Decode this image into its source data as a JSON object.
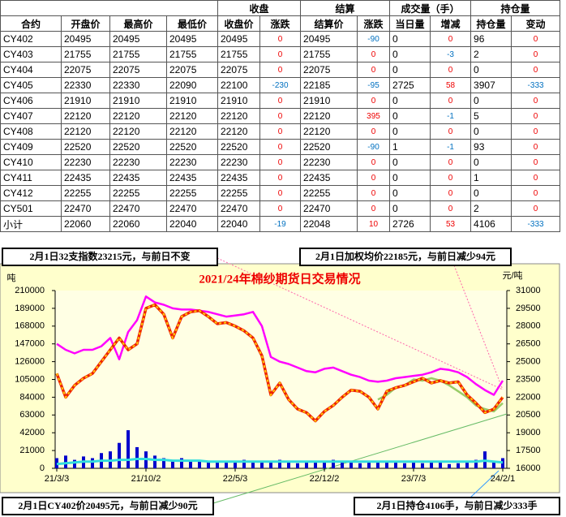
{
  "table": {
    "header_groups": [
      "收盘",
      "结算",
      "成交量（手）",
      "持仓量"
    ],
    "columns": [
      "合约",
      "开盘价",
      "最高价",
      "最低价",
      "收盘价",
      "涨跌",
      "结算价",
      "涨跌",
      "当日量",
      "增减",
      "持仓量",
      "变动"
    ],
    "rows": [
      [
        "CY402",
        20495,
        20495,
        20495,
        20495,
        0,
        20495,
        -90,
        0,
        0,
        96,
        0
      ],
      [
        "CY403",
        21755,
        21755,
        21755,
        21755,
        0,
        21755,
        0,
        0,
        -3,
        2,
        0
      ],
      [
        "CY404",
        22075,
        22075,
        22075,
        22075,
        0,
        22075,
        0,
        0,
        0,
        0,
        0
      ],
      [
        "CY405",
        22330,
        22330,
        22090,
        22100,
        -230,
        22185,
        -95,
        2725,
        58,
        3907,
        -333
      ],
      [
        "CY406",
        21910,
        21910,
        21910,
        21910,
        0,
        21910,
        0,
        0,
        0,
        0,
        0
      ],
      [
        "CY407",
        22120,
        22120,
        22120,
        22120,
        0,
        22120,
        395,
        0,
        -1,
        5,
        0
      ],
      [
        "CY408",
        22120,
        22120,
        22120,
        22120,
        0,
        22120,
        0,
        0,
        0,
        0,
        0
      ],
      [
        "CY409",
        22520,
        22520,
        22520,
        22520,
        0,
        22520,
        -90,
        1,
        -1,
        93,
        0
      ],
      [
        "CY410",
        22230,
        22230,
        22230,
        22230,
        0,
        22230,
        0,
        0,
        0,
        0,
        0
      ],
      [
        "CY411",
        22435,
        22435,
        22435,
        22435,
        0,
        22435,
        0,
        0,
        0,
        1,
        0
      ],
      [
        "CY412",
        22255,
        22255,
        22255,
        22255,
        0,
        22255,
        0,
        0,
        0,
        0,
        0
      ],
      [
        "CY501",
        22470,
        22470,
        22470,
        22470,
        0,
        22470,
        0,
        0,
        0,
        2,
        0
      ],
      [
        "小计",
        22060,
        22060,
        22040,
        22040,
        -19,
        22048,
        10,
        2726,
        53,
        4106,
        -333
      ]
    ]
  },
  "annotations": [
    "2月1日32支指数23215元，与前日不变",
    "2月1日加权均价22185元，与前日减少94元",
    "2月1日CY402价20495元，与前日减少90元",
    "2月1日持仓4106手，与前日减少333手"
  ],
  "chart_data": {
    "type": "line",
    "title": "2021/24年棉纱期货日交易情况",
    "y_label": "吨",
    "y2_label": "元/吨",
    "categories": [
      "21/3/3",
      null,
      null,
      null,
      null,
      null,
      null,
      null,
      null,
      null,
      "21/10/2",
      null,
      null,
      null,
      null,
      null,
      null,
      null,
      null,
      null,
      "22/5/3",
      null,
      null,
      null,
      null,
      null,
      null,
      null,
      null,
      null,
      "22/12/2",
      null,
      null,
      null,
      null,
      null,
      null,
      null,
      null,
      null,
      "23/7/3",
      null,
      null,
      null,
      null,
      null,
      null,
      null,
      null,
      null,
      "24/2/1"
    ],
    "ylim": [
      0,
      210000
    ],
    "yticks": [
      0,
      21000,
      42000,
      63000,
      84000,
      105000,
      126000,
      147000,
      168000,
      189000,
      210000
    ],
    "y2lim": [
      16000,
      31000
    ],
    "y2ticks": [
      16000,
      17500,
      19000,
      20500,
      22000,
      23500,
      25000,
      26500,
      28000,
      29500,
      31000
    ],
    "grid": false,
    "series": [
      {
        "type": "bar",
        "color": "#0000cc",
        "values": [
          12000,
          15000,
          10000,
          14000,
          12000,
          18000,
          20000,
          30000,
          45000,
          25000,
          20000,
          15000,
          12000,
          10000,
          12000,
          8000,
          10000,
          9000,
          7000,
          8000,
          9000,
          10000,
          8000,
          7000,
          9000,
          10000,
          8000,
          6000,
          7000,
          8000,
          9000,
          10000,
          8000,
          7000,
          6000,
          8000,
          9000,
          7000,
          8000,
          6000,
          7000,
          6000,
          8000,
          7000,
          5000,
          6000,
          7000,
          10000,
          20000,
          8000,
          12000
        ]
      },
      {
        "type": "line",
        "color": "#33dddd",
        "values": [
          5000,
          6000,
          7000,
          8000,
          8000,
          9000,
          9000,
          10000,
          10000,
          11000,
          11000,
          10000,
          10000,
          9000,
          9000,
          9000,
          9000,
          8000,
          8000,
          8000,
          8000,
          8000,
          8000,
          8000,
          8000,
          8000,
          8000,
          8000,
          8000,
          8000,
          8000,
          8000,
          8000,
          8000,
          8000,
          8000,
          8000,
          8000,
          8000,
          8000,
          8000,
          8000,
          8000,
          8000,
          8000,
          8000,
          8000,
          8000,
          9000,
          8000,
          7000
        ]
      },
      {
        "type": "line",
        "axis": "y2",
        "color": "#ff00ff",
        "values": [
          26500,
          26000,
          25700,
          26000,
          26000,
          26300,
          27000,
          25200,
          27500,
          28500,
          30500,
          30000,
          29800,
          29500,
          29400,
          29400,
          29300,
          29200,
          29000,
          28800,
          28900,
          29000,
          29200,
          28000,
          25400,
          25000,
          24800,
          24500,
          24200,
          24100,
          24400,
          24500,
          24200,
          23900,
          23700,
          23400,
          23300,
          23400,
          23600,
          23700,
          23800,
          23900,
          24100,
          24400,
          24300,
          24100,
          23700,
          23100,
          22600,
          22200,
          23400
        ]
      },
      {
        "type": "line",
        "axis": "y2",
        "color": "#99cc66",
        "values": [
          null,
          null,
          null,
          null,
          null,
          null,
          null,
          null,
          null,
          null,
          null,
          null,
          null,
          null,
          null,
          null,
          null,
          null,
          null,
          null,
          null,
          null,
          null,
          null,
          null,
          null,
          null,
          null,
          null,
          null,
          null,
          null,
          null,
          null,
          null,
          null,
          21800,
          22200,
          22800,
          23000,
          23500,
          23400,
          23600,
          23400,
          23000,
          22500,
          22000,
          21300,
          21000,
          20800,
          21500
        ]
      },
      {
        "type": "line",
        "axis": "y2",
        "color": "#ee2200",
        "values": [
          24000,
          22000,
          23000,
          23600,
          24000,
          25000,
          26000,
          27000,
          26000,
          26500,
          29500,
          29800,
          29000,
          27000,
          28800,
          29200,
          29300,
          28800,
          28200,
          28300,
          28000,
          27600,
          27000,
          25500,
          22200,
          23200,
          21800,
          21000,
          20700,
          20000,
          20800,
          21300,
          22000,
          22600,
          22500,
          22000,
          21000,
          22500,
          22800,
          23000,
          23300,
          23600,
          23200,
          23400,
          23200,
          23300,
          22200,
          21500,
          20700,
          21000,
          22000
        ]
      }
    ]
  }
}
